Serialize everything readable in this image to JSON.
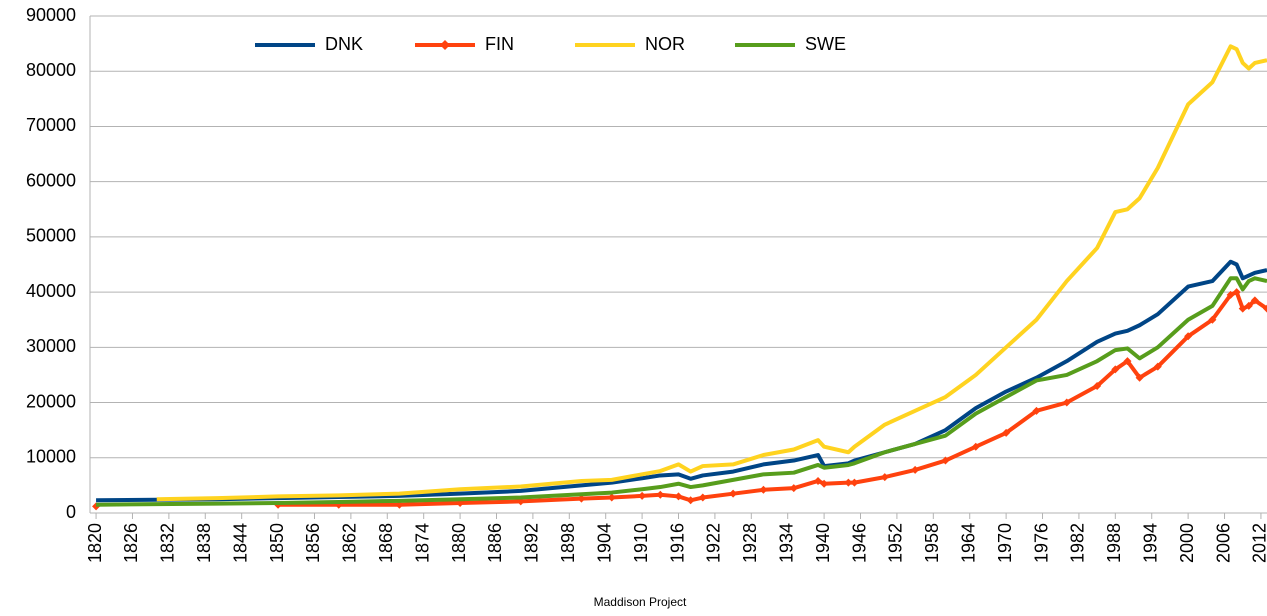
{
  "chart_data": {
    "type": "line",
    "x": [
      1820,
      1830,
      1840,
      1850,
      1860,
      1870,
      1880,
      1890,
      1900,
      1905,
      1910,
      1913,
      1916,
      1918,
      1920,
      1925,
      1930,
      1935,
      1939,
      1940,
      1944,
      1945,
      1950,
      1955,
      1960,
      1965,
      1970,
      1975,
      1980,
      1985,
      1988,
      1990,
      1992,
      1995,
      2000,
      2004,
      2007,
      2008,
      2009,
      2010,
      2011,
      2013
    ],
    "series": [
      {
        "name": "DNK",
        "color": "#004586",
        "marker": false,
        "values": [
          2300,
          2400,
          2500,
          2700,
          2900,
          3100,
          3500,
          4000,
          5000,
          5500,
          6300,
          6800,
          7000,
          6200,
          6800,
          7500,
          8800,
          9500,
          10500,
          8500,
          9000,
          9500,
          11000,
          12500,
          15000,
          19000,
          22000,
          24500,
          27500,
          31000,
          32500,
          33000,
          34000,
          36000,
          41000,
          42000,
          45500,
          45000,
          42500,
          43000,
          43500,
          44000
        ]
      },
      {
        "name": "FIN",
        "color": "#ff420e",
        "marker": true,
        "values": [
          1200,
          null,
          null,
          1500,
          1500,
          1500,
          1800,
          2100,
          2600,
          2800,
          3100,
          3300,
          3000,
          2300,
          2800,
          3500,
          4200,
          4500,
          5800,
          5300,
          5500,
          5500,
          6500,
          7800,
          9500,
          12000,
          14500,
          18500,
          20000,
          23000,
          26000,
          27500,
          24500,
          26500,
          32000,
          35000,
          39500,
          40000,
          37000,
          37500,
          38500,
          37000
        ]
      },
      {
        "name": "NOR",
        "color": "#ffd320",
        "marker": false,
        "values": [
          null,
          2500,
          2700,
          3000,
          3200,
          3500,
          4300,
          4800,
          5800,
          6000,
          7000,
          7600,
          8800,
          7500,
          8500,
          8800,
          10500,
          11500,
          13200,
          12000,
          11000,
          12000,
          16000,
          18500,
          21000,
          25000,
          30000,
          35000,
          42000,
          48000,
          54500,
          55000,
          57000,
          62500,
          74000,
          78000,
          84500,
          84000,
          81500,
          80500,
          81500,
          82000
        ]
      },
      {
        "name": "SWE",
        "color": "#579d1c",
        "marker": false,
        "values": [
          1500,
          1600,
          1700,
          1800,
          2000,
          2200,
          2500,
          2800,
          3400,
          3700,
          4300,
          4700,
          5300,
          4700,
          5000,
          6000,
          7000,
          7300,
          8700,
          8200,
          8700,
          9000,
          11000,
          12500,
          14000,
          18000,
          21000,
          24000,
          25000,
          27500,
          29500,
          29800,
          28000,
          30000,
          35000,
          37500,
          42500,
          42500,
          40500,
          42000,
          42500,
          42000
        ]
      }
    ],
    "xlim": [
      1819,
      2013
    ],
    "xticks": [
      1820,
      1826,
      1832,
      1838,
      1844,
      1850,
      1856,
      1862,
      1868,
      1874,
      1880,
      1886,
      1892,
      1898,
      1904,
      1910,
      1916,
      1922,
      1928,
      1934,
      1940,
      1946,
      1952,
      1958,
      1964,
      1970,
      1976,
      1982,
      1988,
      1994,
      2000,
      2006,
      2012
    ],
    "ylim": [
      0,
      90000
    ],
    "yticks": [
      0,
      10000,
      20000,
      30000,
      40000,
      50000,
      60000,
      70000,
      80000,
      90000
    ],
    "grid": true,
    "legend": "top",
    "source": "Maddison Project"
  }
}
